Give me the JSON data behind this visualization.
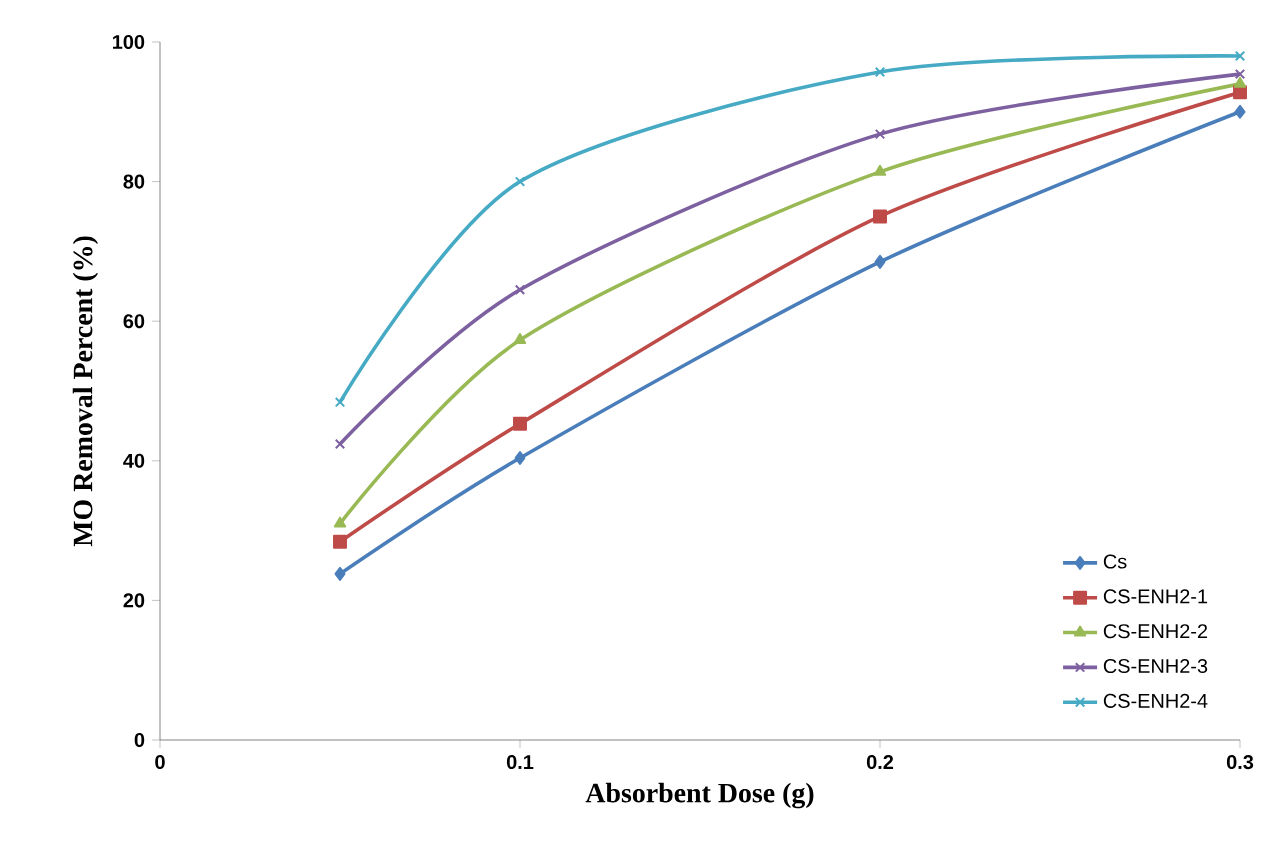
{
  "chart_data": {
    "type": "line",
    "xlabel": "Absorbent Dose (g)",
    "ylabel": "MO Removal Percent (%)",
    "x": [
      0.05,
      0.1,
      0.2,
      0.3
    ],
    "series": [
      {
        "name": "Cs",
        "color": "#4a7ebb",
        "marker": "diamond",
        "values": [
          23.8,
          40.4,
          68.5,
          90
        ]
      },
      {
        "name": "CS-ENH2-1",
        "color": "#be4b48",
        "marker": "square",
        "values": [
          28.4,
          45.3,
          75,
          92.8
        ]
      },
      {
        "name": "CS-ENH2-2",
        "color": "#98b954",
        "marker": "triangle",
        "values": [
          31,
          57.3,
          81.4,
          94
        ]
      },
      {
        "name": "CS-ENH2-3",
        "color": "#7d60a0",
        "marker": "cross",
        "values": [
          42.4,
          64.5,
          86.8,
          95.4
        ]
      },
      {
        "name": "CS-ENH2-4",
        "color": "#46aac5",
        "marker": "cross",
        "values": [
          48.4,
          80,
          95.7,
          98
        ]
      }
    ],
    "xlim": [
      0,
      0.3
    ],
    "xticks": [
      0,
      0.1,
      0.2,
      0.3
    ],
    "ylim": [
      0,
      100
    ],
    "yticks": [
      0,
      20,
      40,
      60,
      80,
      100
    ],
    "grid": false,
    "legend": "bottom right"
  }
}
